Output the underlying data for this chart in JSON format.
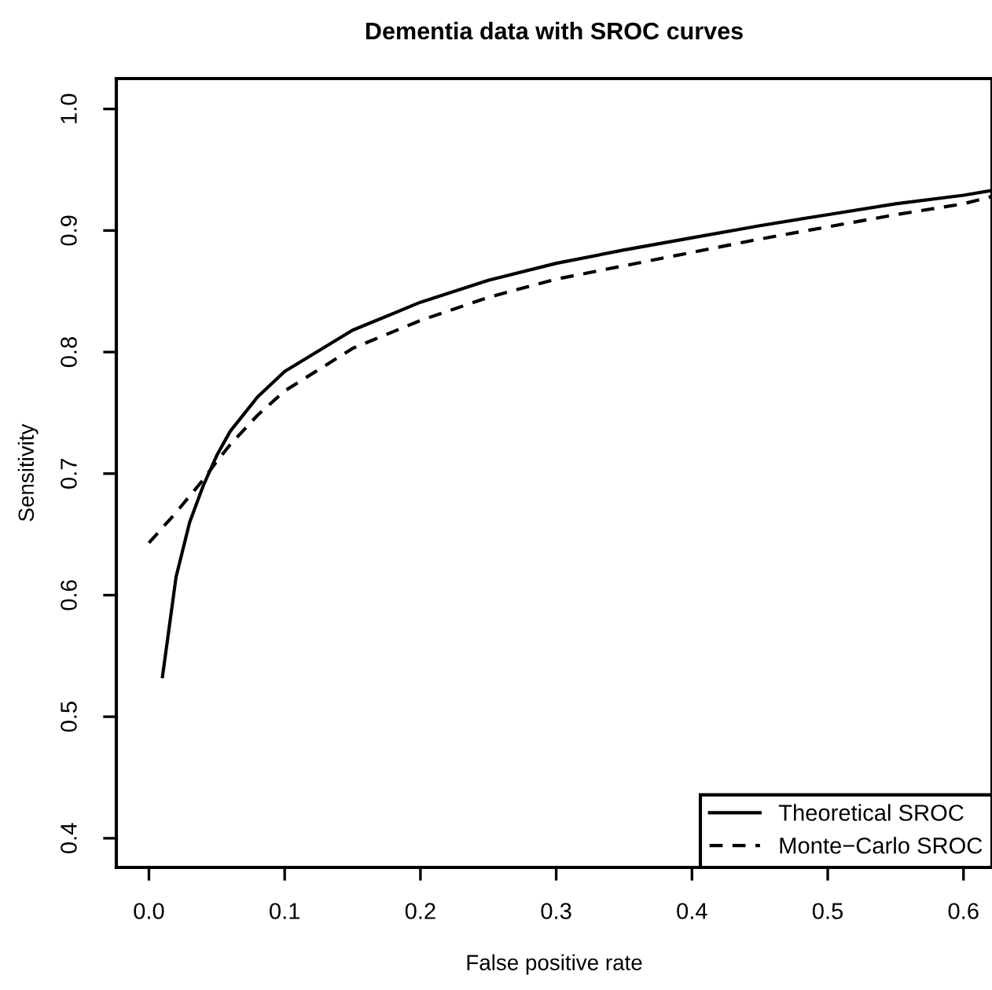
{
  "chart_data": {
    "type": "line",
    "title": "Dementia data with SROC curves",
    "xlabel": "False positive rate",
    "ylabel": "Sensitivity",
    "xlim": [
      -0.024,
      0.621
    ],
    "ylim": [
      0.376,
      1.025
    ],
    "xticks": [
      {
        "value": 0,
        "label": "0.0"
      },
      0.1,
      0.2,
      0.3,
      0.4,
      0.5,
      0.6
    ],
    "yticks": [
      0.4,
      0.5,
      0.6,
      0.7,
      0.8,
      0.9,
      {
        "value": 1,
        "label": "1.0"
      }
    ],
    "grid": false,
    "legend": "bottom right",
    "marker": "none",
    "series": [
      {
        "name": "Theoretical SROC",
        "color": "#000000",
        "line_style": "solid",
        "x": [
          0.01,
          0.02,
          0.03,
          0.04,
          0.05,
          0.06,
          0.08,
          0.1,
          0.15,
          0.2,
          0.25,
          0.3,
          0.35,
          0.4,
          0.45,
          0.5,
          0.55,
          0.6,
          0.621
        ],
        "values": [
          0.533,
          0.615,
          0.66,
          0.69,
          0.715,
          0.735,
          0.763,
          0.784,
          0.818,
          0.841,
          0.859,
          0.873,
          0.884,
          0.894,
          0.904,
          0.913,
          0.922,
          0.929,
          0.933
        ]
      },
      {
        "name": "Monte−Carlo SROC",
        "color": "#000000",
        "line_style": "dashed",
        "x": [
          0.0,
          0.02,
          0.04,
          0.05,
          0.06,
          0.08,
          0.1,
          0.15,
          0.2,
          0.25,
          0.3,
          0.35,
          0.4,
          0.45,
          0.5,
          0.55,
          0.6,
          0.621
        ],
        "values": [
          0.643,
          0.668,
          0.695,
          0.71,
          0.724,
          0.748,
          0.768,
          0.803,
          0.826,
          0.845,
          0.86,
          0.871,
          0.882,
          0.893,
          0.903,
          0.913,
          0.922,
          0.928
        ]
      }
    ]
  }
}
